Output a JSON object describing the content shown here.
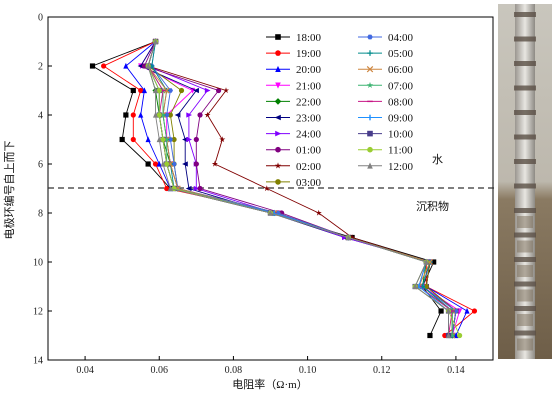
{
  "chart_data": {
    "type": "line",
    "xlabel": "电阻率（Ω·m）",
    "ylabel": "电极环编号自上而下",
    "xlim": [
      0.03,
      0.15
    ],
    "ylim": [
      14,
      0
    ],
    "xticks": [
      "0.04",
      "0.06",
      "0.08",
      "0.10",
      "0.12",
      "0.14"
    ],
    "yticks": [
      "0",
      "2",
      "4",
      "6",
      "8",
      "10",
      "12",
      "14"
    ],
    "boundary_y": 7,
    "annotations": [
      {
        "text": "水",
        "x": 0.1,
        "y": 6
      },
      {
        "text": "沉积物",
        "x": 0.09,
        "y": 7.8
      }
    ],
    "legend_position": "top-center",
    "series": [
      {
        "name": "18:00",
        "color": "#000000",
        "marker": "square",
        "values": [
          [
            0.059,
            1
          ],
          [
            0.042,
            2
          ],
          [
            0.053,
            3
          ],
          [
            0.051,
            4
          ],
          [
            0.05,
            5
          ],
          [
            0.057,
            6
          ],
          [
            0.063,
            7
          ],
          [
            0.09,
            8
          ],
          [
            0.112,
            9
          ],
          [
            0.134,
            10
          ],
          [
            0.131,
            11
          ],
          [
            0.136,
            12
          ],
          [
            0.133,
            13
          ]
        ]
      },
      {
        "name": "19:00",
        "color": "#ff0000",
        "marker": "circle",
        "values": [
          [
            0.059,
            1
          ],
          [
            0.045,
            2
          ],
          [
            0.055,
            3
          ],
          [
            0.053,
            4
          ],
          [
            0.053,
            5
          ],
          [
            0.059,
            6
          ],
          [
            0.062,
            7
          ],
          [
            0.092,
            8
          ],
          [
            0.111,
            9
          ],
          [
            0.132,
            10
          ],
          [
            0.132,
            11
          ],
          [
            0.145,
            12
          ],
          [
            0.137,
            13
          ]
        ]
      },
      {
        "name": "20:00",
        "color": "#0000ff",
        "marker": "triangle-up",
        "values": [
          [
            0.059,
            1
          ],
          [
            0.051,
            2
          ],
          [
            0.056,
            3
          ],
          [
            0.055,
            4
          ],
          [
            0.057,
            5
          ],
          [
            0.06,
            6
          ],
          [
            0.063,
            7
          ],
          [
            0.091,
            8
          ],
          [
            0.111,
            9
          ],
          [
            0.133,
            10
          ],
          [
            0.132,
            11
          ],
          [
            0.143,
            12
          ],
          [
            0.14,
            13
          ]
        ]
      },
      {
        "name": "21:00",
        "color": "#ff00ff",
        "marker": "triangle-down",
        "values": [
          [
            0.059,
            1
          ],
          [
            0.055,
            2
          ],
          [
            0.069,
            3
          ],
          [
            0.062,
            4
          ],
          [
            0.062,
            5
          ],
          [
            0.063,
            6
          ],
          [
            0.065,
            7
          ],
          [
            0.092,
            8
          ],
          [
            0.111,
            9
          ],
          [
            0.133,
            10
          ],
          [
            0.131,
            11
          ],
          [
            0.141,
            12
          ],
          [
            0.139,
            13
          ]
        ]
      },
      {
        "name": "22:00",
        "color": "#008000",
        "marker": "diamond",
        "values": [
          [
            0.059,
            1
          ],
          [
            0.057,
            2
          ],
          [
            0.059,
            3
          ],
          [
            0.06,
            4
          ],
          [
            0.061,
            5
          ],
          [
            0.063,
            6
          ],
          [
            0.065,
            7
          ],
          [
            0.091,
            8
          ],
          [
            0.111,
            9
          ],
          [
            0.132,
            10
          ],
          [
            0.131,
            11
          ],
          [
            0.139,
            12
          ],
          [
            0.139,
            13
          ]
        ]
      },
      {
        "name": "23:00",
        "color": "#000080",
        "marker": "triangle-left",
        "values": [
          [
            0.059,
            1
          ],
          [
            0.055,
            2
          ],
          [
            0.07,
            3
          ],
          [
            0.065,
            4
          ],
          [
            0.067,
            5
          ],
          [
            0.067,
            6
          ],
          [
            0.068,
            7
          ],
          [
            0.09,
            8
          ],
          [
            0.11,
            9
          ],
          [
            0.133,
            10
          ],
          [
            0.132,
            11
          ],
          [
            0.14,
            12
          ],
          [
            0.139,
            13
          ]
        ]
      },
      {
        "name": "24:00",
        "color": "#8000ff",
        "marker": "triangle-right",
        "values": [
          [
            0.059,
            1
          ],
          [
            0.057,
            2
          ],
          [
            0.073,
            3
          ],
          [
            0.068,
            4
          ],
          [
            0.068,
            5
          ],
          [
            0.07,
            6
          ],
          [
            0.07,
            7
          ],
          [
            0.091,
            8
          ],
          [
            0.11,
            9
          ],
          [
            0.133,
            10
          ],
          [
            0.132,
            11
          ],
          [
            0.14,
            12
          ],
          [
            0.139,
            13
          ]
        ]
      },
      {
        "name": "01:00",
        "color": "#800080",
        "marker": "circle",
        "values": [
          [
            0.059,
            1
          ],
          [
            0.056,
            2
          ],
          [
            0.076,
            3
          ],
          [
            0.071,
            4
          ],
          [
            0.07,
            5
          ],
          [
            0.07,
            6
          ],
          [
            0.071,
            7
          ],
          [
            0.093,
            8
          ],
          [
            0.111,
            9
          ],
          [
            0.133,
            10
          ],
          [
            0.131,
            11
          ],
          [
            0.14,
            12
          ],
          [
            0.139,
            13
          ]
        ]
      },
      {
        "name": "02:00",
        "color": "#800000",
        "marker": "star",
        "values": [
          [
            0.059,
            1
          ],
          [
            0.057,
            2
          ],
          [
            0.078,
            3
          ],
          [
            0.073,
            4
          ],
          [
            0.077,
            5
          ],
          [
            0.075,
            6
          ],
          [
            0.089,
            7
          ],
          [
            0.103,
            8
          ],
          [
            0.112,
            9
          ],
          [
            0.133,
            10
          ],
          [
            0.132,
            11
          ],
          [
            0.14,
            12
          ],
          [
            0.139,
            13
          ]
        ]
      },
      {
        "name": "03:00",
        "color": "#808000",
        "marker": "circle",
        "values": [
          [
            0.059,
            1
          ],
          [
            0.057,
            2
          ],
          [
            0.066,
            3
          ],
          [
            0.063,
            4
          ],
          [
            0.064,
            5
          ],
          [
            0.064,
            6
          ],
          [
            0.065,
            7
          ],
          [
            0.092,
            8
          ],
          [
            0.111,
            9
          ],
          [
            0.133,
            10
          ],
          [
            0.132,
            11
          ],
          [
            0.14,
            12
          ],
          [
            0.139,
            13
          ]
        ]
      },
      {
        "name": "04:00",
        "color": "#4169e1",
        "marker": "hexagon",
        "values": [
          [
            0.059,
            1
          ],
          [
            0.058,
            2
          ],
          [
            0.063,
            3
          ],
          [
            0.062,
            4
          ],
          [
            0.063,
            5
          ],
          [
            0.064,
            6
          ],
          [
            0.065,
            7
          ],
          [
            0.092,
            8
          ],
          [
            0.111,
            9
          ],
          [
            0.133,
            10
          ],
          [
            0.131,
            11
          ],
          [
            0.14,
            12
          ],
          [
            0.139,
            13
          ]
        ]
      },
      {
        "name": "05:00",
        "color": "#008b8b",
        "marker": "plus",
        "values": [
          [
            0.059,
            1
          ],
          [
            0.058,
            2
          ],
          [
            0.062,
            3
          ],
          [
            0.061,
            4
          ],
          [
            0.062,
            5
          ],
          [
            0.063,
            6
          ],
          [
            0.064,
            7
          ],
          [
            0.091,
            8
          ],
          [
            0.111,
            9
          ],
          [
            0.133,
            10
          ],
          [
            0.131,
            11
          ],
          [
            0.139,
            12
          ],
          [
            0.139,
            13
          ]
        ]
      },
      {
        "name": "06:00",
        "color": "#cd853f",
        "marker": "x",
        "values": [
          [
            0.059,
            1
          ],
          [
            0.057,
            2
          ],
          [
            0.062,
            3
          ],
          [
            0.061,
            4
          ],
          [
            0.062,
            5
          ],
          [
            0.063,
            6
          ],
          [
            0.065,
            7
          ],
          [
            0.091,
            8
          ],
          [
            0.111,
            9
          ],
          [
            0.133,
            10
          ],
          [
            0.13,
            11
          ],
          [
            0.139,
            12
          ],
          [
            0.139,
            13
          ]
        ]
      },
      {
        "name": "07:00",
        "color": "#3cb371",
        "marker": "star",
        "values": [
          [
            0.059,
            1
          ],
          [
            0.057,
            2
          ],
          [
            0.061,
            3
          ],
          [
            0.061,
            4
          ],
          [
            0.062,
            5
          ],
          [
            0.062,
            6
          ],
          [
            0.064,
            7
          ],
          [
            0.091,
            8
          ],
          [
            0.111,
            9
          ],
          [
            0.132,
            10
          ],
          [
            0.13,
            11
          ],
          [
            0.139,
            12
          ],
          [
            0.139,
            13
          ]
        ]
      },
      {
        "name": "08:00",
        "color": "#c71585",
        "marker": "dash",
        "values": [
          [
            0.059,
            1
          ],
          [
            0.057,
            2
          ],
          [
            0.061,
            3
          ],
          [
            0.06,
            4
          ],
          [
            0.061,
            5
          ],
          [
            0.062,
            6
          ],
          [
            0.064,
            7
          ],
          [
            0.091,
            8
          ],
          [
            0.111,
            9
          ],
          [
            0.132,
            10
          ],
          [
            0.13,
            11
          ],
          [
            0.139,
            12
          ],
          [
            0.138,
            13
          ]
        ]
      },
      {
        "name": "09:00",
        "color": "#1e90ff",
        "marker": "line",
        "values": [
          [
            0.059,
            1
          ],
          [
            0.057,
            2
          ],
          [
            0.06,
            3
          ],
          [
            0.06,
            4
          ],
          [
            0.061,
            5
          ],
          [
            0.062,
            6
          ],
          [
            0.064,
            7
          ],
          [
            0.091,
            8
          ],
          [
            0.111,
            9
          ],
          [
            0.132,
            10
          ],
          [
            0.13,
            11
          ],
          [
            0.138,
            12
          ],
          [
            0.138,
            13
          ]
        ]
      },
      {
        "name": "10:00",
        "color": "#483d8b",
        "marker": "square",
        "values": [
          [
            0.059,
            1
          ],
          [
            0.057,
            2
          ],
          [
            0.06,
            3
          ],
          [
            0.06,
            4
          ],
          [
            0.061,
            5
          ],
          [
            0.062,
            6
          ],
          [
            0.064,
            7
          ],
          [
            0.09,
            8
          ],
          [
            0.111,
            9
          ],
          [
            0.132,
            10
          ],
          [
            0.129,
            11
          ],
          [
            0.138,
            12
          ],
          [
            0.138,
            13
          ]
        ]
      },
      {
        "name": "11:00",
        "color": "#9acd32",
        "marker": "circle",
        "values": [
          [
            0.059,
            1
          ],
          [
            0.057,
            2
          ],
          [
            0.06,
            3
          ],
          [
            0.06,
            4
          ],
          [
            0.061,
            5
          ],
          [
            0.062,
            6
          ],
          [
            0.064,
            7
          ],
          [
            0.09,
            8
          ],
          [
            0.111,
            9
          ],
          [
            0.132,
            10
          ],
          [
            0.129,
            11
          ],
          [
            0.138,
            12
          ],
          [
            0.141,
            13
          ]
        ]
      },
      {
        "name": "12:00",
        "color": "#808080",
        "marker": "triangle-up",
        "values": [
          [
            0.059,
            1
          ],
          [
            0.057,
            2
          ],
          [
            0.059,
            3
          ],
          [
            0.059,
            4
          ],
          [
            0.06,
            5
          ],
          [
            0.061,
            6
          ],
          [
            0.063,
            7
          ],
          [
            0.09,
            8
          ],
          [
            0.111,
            9
          ],
          [
            0.132,
            10
          ],
          [
            0.129,
            11
          ],
          [
            0.138,
            12
          ],
          [
            0.138,
            13
          ]
        ]
      }
    ]
  }
}
